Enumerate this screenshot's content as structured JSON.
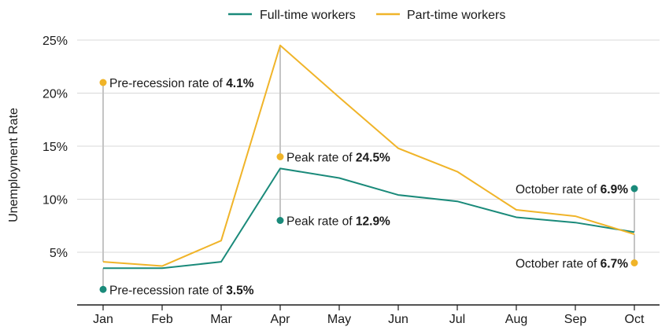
{
  "chart_data": {
    "type": "line",
    "title": "",
    "xlabel": "",
    "ylabel": "Unemployment Rate",
    "categories": [
      "Jan",
      "Feb",
      "Mar",
      "Apr",
      "May",
      "Jun",
      "Jul",
      "Aug",
      "Sep",
      "Oct"
    ],
    "ylim": [
      0,
      25
    ],
    "yticks": [
      5,
      10,
      15,
      20,
      25
    ],
    "ytick_labels": [
      "5%",
      "10%",
      "15%",
      "20%",
      "25%"
    ],
    "grid": true,
    "legend_position": "top",
    "series": [
      {
        "name": "Full-time workers",
        "color": "#1a8a7a",
        "values": [
          3.5,
          3.5,
          4.1,
          12.9,
          12.0,
          10.4,
          9.8,
          8.3,
          7.8,
          6.9
        ]
      },
      {
        "name": "Part-time workers",
        "color": "#f0b429",
        "values": [
          4.1,
          3.7,
          6.1,
          24.5,
          19.6,
          14.8,
          12.6,
          9.0,
          8.4,
          6.7
        ]
      }
    ],
    "annotations": [
      {
        "category": "Jan",
        "y": 21.0,
        "series": 1,
        "text": "Pre-recession rate of ",
        "value": "4.1%",
        "align": "right",
        "anchor_y": 4.1
      },
      {
        "category": "Jan",
        "y": 1.5,
        "series": 0,
        "text": "Pre-recession rate of ",
        "value": "3.5%",
        "align": "right",
        "anchor_y": 3.5
      },
      {
        "category": "Apr",
        "y": 14.0,
        "series": 1,
        "text": "Peak rate of ",
        "value": "24.5%",
        "align": "right",
        "anchor_y": 24.5
      },
      {
        "category": "Apr",
        "y": 8.0,
        "series": 0,
        "text": "Peak rate of ",
        "value": "12.9%",
        "align": "right",
        "anchor_y": 12.9
      },
      {
        "category": "Oct",
        "y": 11.0,
        "series": 0,
        "text": "October rate of ",
        "value": "6.9%",
        "align": "left",
        "anchor_y": 6.9
      },
      {
        "category": "Oct",
        "y": 4.0,
        "series": 1,
        "text": "October rate of ",
        "value": "6.7%",
        "align": "left",
        "anchor_y": 6.7
      }
    ]
  }
}
